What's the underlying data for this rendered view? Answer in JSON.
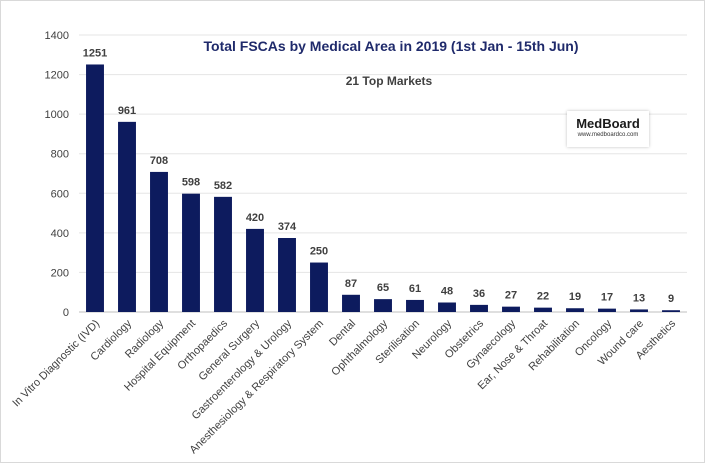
{
  "chart_data": {
    "type": "bar",
    "title": "Total FSCAs by Medical Area in 2019 (1st Jan - 15th Jun)",
    "subtitle": "21 Top Markets",
    "categories": [
      "In Vitro Diagnostic (IVD)",
      "Cardiology",
      "Radiology",
      "Hospital Equipment",
      "Orthopaedics",
      "General Surgery",
      "Gastroenterology & Urology",
      "Anesthesiology & Respiratory System",
      "Dental",
      "Ophthalmology",
      "Sterilisation",
      "Neurology",
      "Obstetrics",
      "Gynaecology",
      "Ear, Nose & Throat",
      "Rehabilitation",
      "Oncology",
      "Wound care",
      "Aesthetics"
    ],
    "values": [
      1251,
      961,
      708,
      598,
      582,
      420,
      374,
      250,
      87,
      65,
      61,
      48,
      36,
      27,
      22,
      19,
      17,
      13,
      9
    ],
    "value_labels": [
      "1251",
      "961",
      "708",
      "598",
      "582",
      "420",
      "374",
      "250",
      "87",
      "65",
      "61",
      "48",
      "36",
      "27",
      "22",
      "19",
      "17",
      "13",
      "9"
    ],
    "ylim": [
      0,
      1400
    ],
    "yticks": [
      0,
      200,
      400,
      600,
      800,
      1000,
      1200,
      1400
    ],
    "ytick_labels": [
      "0",
      "200",
      "400",
      "600",
      "800",
      "1000",
      "1200",
      "1400"
    ],
    "xlabel": "",
    "ylabel": "",
    "grid": true,
    "legend": "none",
    "bar_color": "#0d1b5e"
  },
  "logo": {
    "name": "MedBoard",
    "url": "www.medboardco.com"
  }
}
